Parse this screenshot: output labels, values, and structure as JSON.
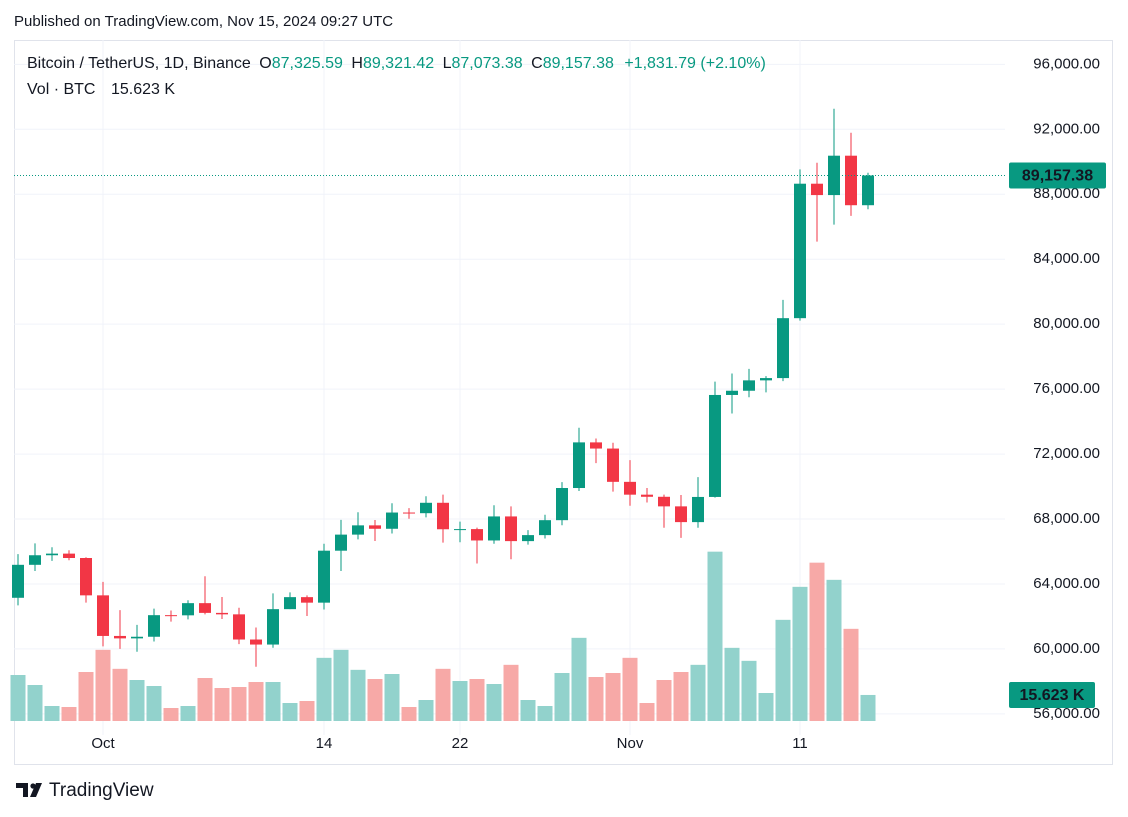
{
  "header": {
    "published": "Published on TradingView.com, Nov 15, 2024 09:27 UTC"
  },
  "chart_data": {
    "type": "candlestick",
    "legend": {
      "symbol": "Bitcoin / TetherUS, 1D, Binance",
      "open_label": "O",
      "open": "87,325.59",
      "high_label": "H",
      "high": "89,321.42",
      "low_label": "L",
      "low": "87,073.38",
      "close_label": "C",
      "close": "89,157.38",
      "change": "+1,831.79 (+2.10%)",
      "volume_label": "Vol · BTC",
      "volume": "15.623 K"
    },
    "categories": [
      null,
      null,
      null,
      null,
      null,
      "Oct",
      null,
      null,
      null,
      null,
      null,
      null,
      null,
      null,
      null,
      null,
      null,
      null,
      "14",
      null,
      null,
      null,
      null,
      null,
      null,
      null,
      "22",
      null,
      null,
      null,
      null,
      null,
      null,
      null,
      null,
      null,
      "Nov",
      null,
      null,
      null,
      null,
      null,
      null,
      null,
      null,
      null,
      "11",
      null,
      null,
      null,
      null
    ],
    "open": [
      63150,
      65180,
      65770,
      65870,
      65600,
      63300,
      60800,
      60650,
      60750,
      62080,
      62070,
      62820,
      62220,
      62130,
      60580,
      60270,
      62450,
      63190,
      62850,
      66050,
      67040,
      67610,
      67400,
      68400,
      68360,
      69000,
      67370,
      67380,
      66680,
      68160,
      66640,
      67010,
      67930,
      69910,
      72720,
      72340,
      70290,
      69500,
      69370,
      68780,
      67810,
      69360,
      75640,
      75900,
      76540,
      76680,
      80370,
      88650,
      87950,
      90375,
      87325.59
    ],
    "high": [
      65840,
      66500,
      66260,
      66080,
      65650,
      64130,
      62390,
      61480,
      62480,
      62370,
      63000,
      64480,
      63200,
      62540,
      61320,
      63420,
      63480,
      63300,
      66480,
      67950,
      68420,
      67940,
      68970,
      68670,
      69400,
      69500,
      67840,
      67470,
      68850,
      68780,
      67320,
      68260,
      70270,
      73620,
      72960,
      72700,
      71630,
      69910,
      69500,
      69480,
      70580,
      76460,
      76960,
      77250,
      76800,
      81500,
      89530,
      89940,
      93265,
      91790,
      89321.42
    ],
    "low": [
      62680,
      64800,
      65420,
      65460,
      62850,
      60160,
      60000,
      59830,
      60460,
      61680,
      61820,
      62130,
      61840,
      60300,
      58900,
      60070,
      62450,
      62030,
      62430,
      64800,
      66750,
      66650,
      67110,
      68020,
      68100,
      66550,
      66570,
      65260,
      66480,
      65520,
      66420,
      66800,
      67620,
      69730,
      71440,
      69690,
      68820,
      69020,
      67460,
      66840,
      67460,
      69320,
      74500,
      75500,
      75800,
      76490,
      80220,
      85080,
      86130,
      86670,
      87073.38
    ],
    "close": [
      65180,
      65770,
      65870,
      65600,
      63300,
      60800,
      60650,
      60750,
      62080,
      62070,
      62820,
      62220,
      62130,
      60580,
      60270,
      62450,
      63190,
      62850,
      66050,
      67040,
      67610,
      67400,
      68400,
      68360,
      69000,
      67370,
      67380,
      66680,
      68160,
      66640,
      67010,
      67930,
      69910,
      72720,
      72340,
      70290,
      69500,
      69370,
      68780,
      67810,
      69360,
      75640,
      75900,
      76540,
      76680,
      80370,
      88650,
      87950,
      90375,
      87325.59,
      89157.38
    ],
    "volume": [
      27600,
      21600,
      9000,
      8400,
      29400,
      42700,
      31300,
      24600,
      21000,
      7800,
      9000,
      25800,
      19800,
      20400,
      23400,
      23400,
      10800,
      12000,
      37900,
      42700,
      30700,
      25200,
      28200,
      8400,
      12600,
      31300,
      24000,
      25200,
      22200,
      33700,
      12600,
      9000,
      28800,
      49900,
      26400,
      28800,
      37900,
      10800,
      24600,
      29400,
      33700,
      101600,
      43900,
      36100,
      16800,
      60700,
      80500,
      95000,
      84700,
      55300,
      15623
    ],
    "up_color": "#089981",
    "down_color": "#f23645",
    "volume_up_color": "#92d2cc",
    "volume_down_color": "#f7a9a7",
    "ylim": [
      54700,
      97500
    ],
    "yticks": [
      {
        "value": 56000,
        "label": "56,000.00"
      },
      {
        "value": 60000,
        "label": "60,000.00"
      },
      {
        "value": 64000,
        "label": "64,000.00"
      },
      {
        "value": 68000,
        "label": "68,000.00"
      },
      {
        "value": 72000,
        "label": "72,000.00"
      },
      {
        "value": 76000,
        "label": "76,000.00"
      },
      {
        "value": 80000,
        "label": "80,000.00"
      },
      {
        "value": 84000,
        "label": "84,000.00"
      },
      {
        "value": 88000,
        "label": "88,000.00"
      },
      {
        "value": 92000,
        "label": "92,000.00"
      },
      {
        "value": 96000,
        "label": "96,000.00"
      }
    ],
    "vlim": [
      0,
      120000
    ],
    "grid": true
  },
  "footer": {
    "brand": "TradingView"
  }
}
